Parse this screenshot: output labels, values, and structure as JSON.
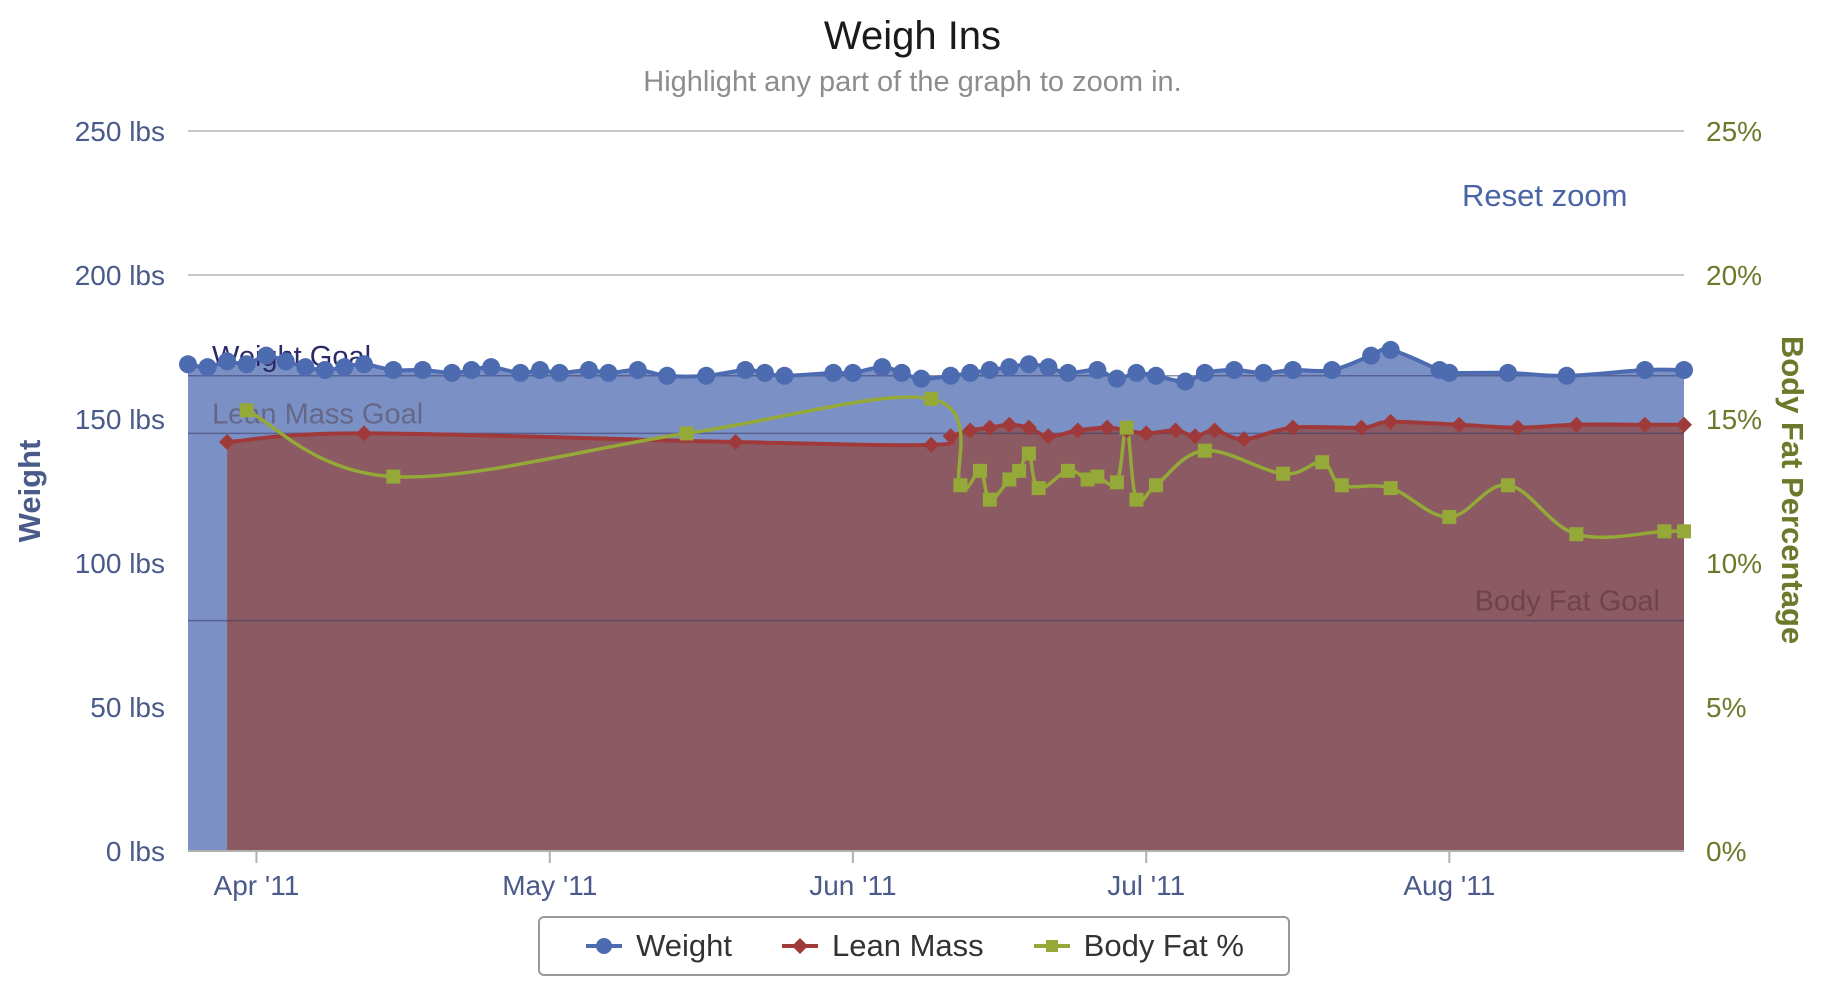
{
  "title": "Weigh Ins",
  "subtitle": "Highlight any part of the graph to zoom in.",
  "reset_zoom_label": "Reset zoom",
  "colors": {
    "weight": "#4d6bb0",
    "weight_fill": "#7b90c4",
    "lean": "#a03a3a",
    "lean_fill": "#8b5a62",
    "bodyfat": "#94a937",
    "left_axis": "#4a5a8a",
    "right_axis": "#6b7a2a"
  },
  "chart_data": {
    "type": "line",
    "title": "Weigh Ins",
    "subtitle": "Highlight any part of the graph to zoom in.",
    "x_axis": {
      "type": "datetime",
      "range": [
        "2011-03-25",
        "2011-08-25"
      ],
      "tick_labels": [
        "Apr '11",
        "May '11",
        "Jun '11",
        "Jul '11",
        "Aug '11"
      ],
      "tick_dates": [
        "2011-04-01",
        "2011-05-01",
        "2011-06-01",
        "2011-07-01",
        "2011-08-01"
      ]
    },
    "y_axis_left": {
      "label": "Weight",
      "range": [
        0,
        250
      ],
      "tick_labels": [
        "0 lbs",
        "50 lbs",
        "100 lbs",
        "150 lbs",
        "200 lbs",
        "250 lbs"
      ],
      "tick_values": [
        0,
        50,
        100,
        150,
        200,
        250
      ]
    },
    "y_axis_right": {
      "label": "Body Fat Percentage",
      "range": [
        0,
        25
      ],
      "tick_labels": [
        "0%",
        "5%",
        "10%",
        "15%",
        "20%",
        "25%"
      ],
      "tick_values": [
        0,
        5,
        10,
        15,
        20,
        25
      ]
    },
    "grid": true,
    "legend_position": "bottom-center",
    "plot_lines": [
      {
        "label": "Weight Goal",
        "axis": "left",
        "value": 165
      },
      {
        "label": "Lean Mass Goal",
        "axis": "left",
        "value": 145
      },
      {
        "label": "Body Fat Goal",
        "axis": "right",
        "value": 8
      }
    ],
    "series": [
      {
        "name": "Weight",
        "type": "area",
        "axis": "left",
        "marker": "circle",
        "x": [
          "2011-03-25",
          "2011-03-27",
          "2011-03-29",
          "2011-03-31",
          "2011-04-02",
          "2011-04-04",
          "2011-04-06",
          "2011-04-08",
          "2011-04-10",
          "2011-04-12",
          "2011-04-15",
          "2011-04-18",
          "2011-04-21",
          "2011-04-23",
          "2011-04-25",
          "2011-04-28",
          "2011-04-30",
          "2011-05-02",
          "2011-05-05",
          "2011-05-07",
          "2011-05-10",
          "2011-05-13",
          "2011-05-17",
          "2011-05-21",
          "2011-05-23",
          "2011-05-25",
          "2011-05-30",
          "2011-06-01",
          "2011-06-04",
          "2011-06-06",
          "2011-06-08",
          "2011-06-11",
          "2011-06-13",
          "2011-06-15",
          "2011-06-17",
          "2011-06-19",
          "2011-06-21",
          "2011-06-23",
          "2011-06-26",
          "2011-06-28",
          "2011-06-30",
          "2011-07-02",
          "2011-07-05",
          "2011-07-07",
          "2011-07-10",
          "2011-07-13",
          "2011-07-16",
          "2011-07-20",
          "2011-07-24",
          "2011-07-26",
          "2011-07-31",
          "2011-08-01",
          "2011-08-07",
          "2011-08-13",
          "2011-08-21",
          "2011-08-25"
        ],
        "values": [
          169,
          168,
          170,
          169,
          172,
          170,
          168,
          167,
          168,
          169,
          167,
          167,
          166,
          167,
          168,
          166,
          167,
          166,
          167,
          166,
          167,
          165,
          165,
          167,
          166,
          165,
          166,
          166,
          168,
          166,
          164,
          165,
          166,
          167,
          168,
          169,
          168,
          166,
          167,
          164,
          166,
          165,
          163,
          166,
          167,
          166,
          167,
          167,
          172,
          174,
          167,
          166,
          166,
          165,
          167,
          167
        ]
      },
      {
        "name": "Lean Mass",
        "type": "area",
        "axis": "left",
        "marker": "diamond",
        "x": [
          "2011-03-29",
          "2011-04-12",
          "2011-05-20",
          "2011-06-09",
          "2011-06-11",
          "2011-06-13",
          "2011-06-15",
          "2011-06-17",
          "2011-06-19",
          "2011-06-21",
          "2011-06-24",
          "2011-06-27",
          "2011-06-29",
          "2011-07-01",
          "2011-07-04",
          "2011-07-06",
          "2011-07-08",
          "2011-07-11",
          "2011-07-16",
          "2011-07-23",
          "2011-07-26",
          "2011-08-02",
          "2011-08-08",
          "2011-08-14",
          "2011-08-21",
          "2011-08-25"
        ],
        "values": [
          142,
          145,
          142,
          141,
          144,
          146,
          147,
          148,
          147,
          144,
          146,
          147,
          146,
          145,
          146,
          144,
          146,
          143,
          147,
          147,
          149,
          148,
          147,
          148,
          148,
          148
        ]
      },
      {
        "name": "Body Fat %",
        "type": "line",
        "axis": "right",
        "marker": "square",
        "x": [
          "2011-03-31",
          "2011-04-15",
          "2011-05-15",
          "2011-06-09",
          "2011-06-12",
          "2011-06-14",
          "2011-06-15",
          "2011-06-17",
          "2011-06-18",
          "2011-06-19",
          "2011-06-20",
          "2011-06-23",
          "2011-06-25",
          "2011-06-26",
          "2011-06-28",
          "2011-06-29",
          "2011-06-30",
          "2011-07-02",
          "2011-07-07",
          "2011-07-15",
          "2011-07-19",
          "2011-07-21",
          "2011-07-26",
          "2011-08-01",
          "2011-08-07",
          "2011-08-14",
          "2011-08-23",
          "2011-08-25"
        ],
        "values": [
          15.3,
          13.0,
          14.5,
          15.7,
          12.7,
          13.2,
          12.2,
          12.9,
          13.2,
          13.8,
          12.6,
          13.2,
          12.9,
          13.0,
          12.8,
          14.7,
          12.2,
          12.7,
          13.9,
          13.1,
          13.5,
          12.7,
          12.6,
          11.6,
          12.7,
          11.0,
          11.1,
          11.1
        ]
      }
    ]
  },
  "legend": [
    {
      "label": "Weight"
    },
    {
      "label": "Lean Mass"
    },
    {
      "label": "Body Fat %"
    }
  ]
}
